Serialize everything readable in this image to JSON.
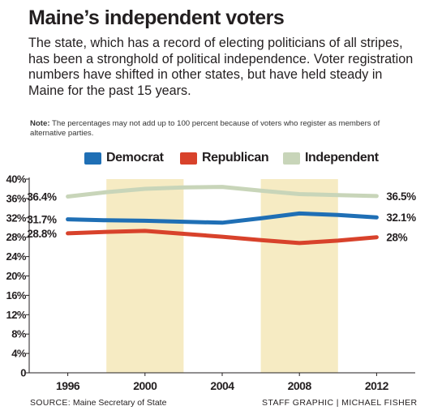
{
  "header": {
    "title": "Maine’s independent voters",
    "intro": "The state, which has a record of electing politicians of all stripes, has been a stronghold of political independence. Voter registration numbers have shifted in other states, but have held steady in Maine for the past 15 years.",
    "note_label": "Note:",
    "note_text": " The percentages may not add up to 100 percent because of voters who register as members of alternative parties."
  },
  "legend": [
    {
      "label": "Democrat",
      "color": "#1f6fb5"
    },
    {
      "label": "Republican",
      "color": "#d8422b"
    },
    {
      "label": "Independent",
      "color": "#c8d5b9"
    }
  ],
  "chart_data": {
    "type": "line",
    "x": [
      1996,
      1998,
      2000,
      2002,
      2004,
      2006,
      2008,
      2010,
      2012
    ],
    "x_tick_labels": [
      "1996",
      "2000",
      "2004",
      "2008",
      "2012"
    ],
    "x_tick_values": [
      1996,
      2000,
      2004,
      2008,
      2012
    ],
    "ylim": [
      0,
      40
    ],
    "y_ticks": [
      0,
      4,
      8,
      12,
      16,
      20,
      24,
      28,
      32,
      36,
      40
    ],
    "y_tick_labels": [
      "0",
      "4%",
      "8%",
      "12%",
      "16%",
      "20%",
      "24%",
      "28%",
      "32%",
      "36%",
      "40%"
    ],
    "shaded_x_ranges": [
      [
        1998,
        2002
      ],
      [
        2006,
        2010
      ]
    ],
    "series": [
      {
        "name": "Independent",
        "color": "#c8d5b9",
        "values": [
          36.4,
          37.3,
          38.0,
          38.3,
          38.4,
          37.6,
          36.9,
          36.7,
          36.5
        ],
        "start_label": "36.4%",
        "end_label": "36.5%"
      },
      {
        "name": "Democrat",
        "color": "#1f6fb5",
        "values": [
          31.7,
          31.5,
          31.4,
          31.2,
          31.0,
          31.9,
          32.9,
          32.6,
          32.1
        ],
        "start_label": "31.7%",
        "end_label": "32.1%"
      },
      {
        "name": "Republican",
        "color": "#d8422b",
        "values": [
          28.8,
          29.1,
          29.3,
          28.7,
          28.1,
          27.4,
          26.8,
          27.3,
          28.0
        ],
        "start_label": "28.8%",
        "end_label": "28%"
      }
    ]
  },
  "footer": {
    "source_label": "SOURCE:",
    "source_text": " Maine Secretary of State",
    "credit": "STAFF GRAPHIC | MICHAEL FISHER"
  }
}
